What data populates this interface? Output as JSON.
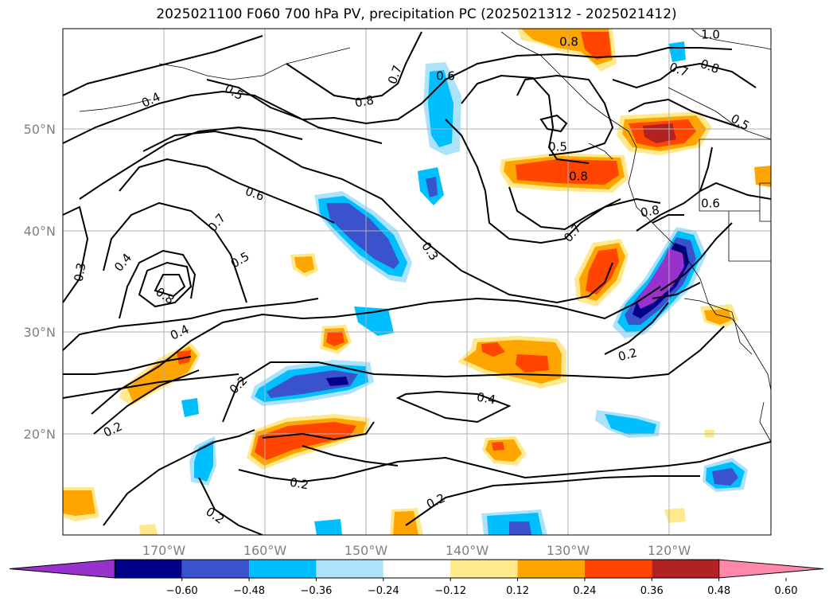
{
  "title": "2025021100 F060 700 hPa PV, precipitation PC (2025021312 - 2025021412)",
  "map": {
    "lat_ticks": [
      "50°N",
      "40°N",
      "30°N",
      "20°N"
    ],
    "lon_ticks": [
      "170°W",
      "160°W",
      "150°W",
      "140°W",
      "130°W",
      "120°W"
    ]
  },
  "contour_labels": [
    "1.0",
    "0.8",
    "0.7",
    "0.6",
    "0.8",
    "0.7",
    "0.4",
    "0.5",
    "0.8",
    "0.5",
    "0.5",
    "0.8",
    "0.8",
    "0.6",
    "0.6",
    "0.7",
    "0.3",
    "0.4",
    "0.5",
    "0.7",
    "0.8",
    "0.4",
    "0.3",
    "0.2",
    "0.2",
    "0.4",
    "0.2",
    "0.2",
    "0.2",
    "0.2"
  ],
  "colorbar": {
    "ticks": [
      "−0.60",
      "−0.48",
      "−0.36",
      "−0.24",
      "−0.12",
      "0.12",
      "0.24",
      "0.36",
      "0.48",
      "0.60"
    ],
    "colors": [
      "#9932CC",
      "#00008B",
      "#3A52CC",
      "#00BFFF",
      "#ADE3FA",
      "#FFFFFF",
      "#FFE98C",
      "#FFA500",
      "#FF4500",
      "#B22222",
      "#FF88AA"
    ]
  }
}
